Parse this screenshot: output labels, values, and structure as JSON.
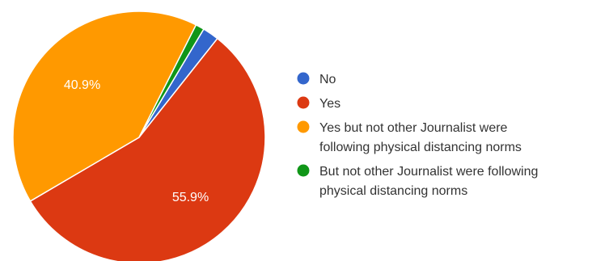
{
  "chart_data": {
    "type": "pie",
    "slices": [
      {
        "label": "No",
        "value": 2.1,
        "color": "#3366CC",
        "data_label": ""
      },
      {
        "label": "Yes",
        "value": 55.9,
        "color": "#DC3912",
        "data_label": "55.9%"
      },
      {
        "label": "Yes but not other Journalist were following physical distancing norms",
        "value": 40.9,
        "color": "#FF9900",
        "data_label": "40.9%"
      },
      {
        "label": "But not other Journalist were following physical distancing norms",
        "value": 1.1,
        "color": "#109618",
        "data_label": ""
      }
    ],
    "legend": {
      "position": "right",
      "entries": [
        {
          "lines": [
            "No"
          ],
          "color": "#3366CC"
        },
        {
          "lines": [
            "Yes"
          ],
          "color": "#DC3912"
        },
        {
          "lines": [
            "Yes but not other Journalist were",
            "following physical distancing norms"
          ],
          "color": "#FF9900"
        },
        {
          "lines": [
            "But not other Journalist were following",
            "physical distancing norms"
          ],
          "color": "#109618"
        }
      ]
    }
  }
}
